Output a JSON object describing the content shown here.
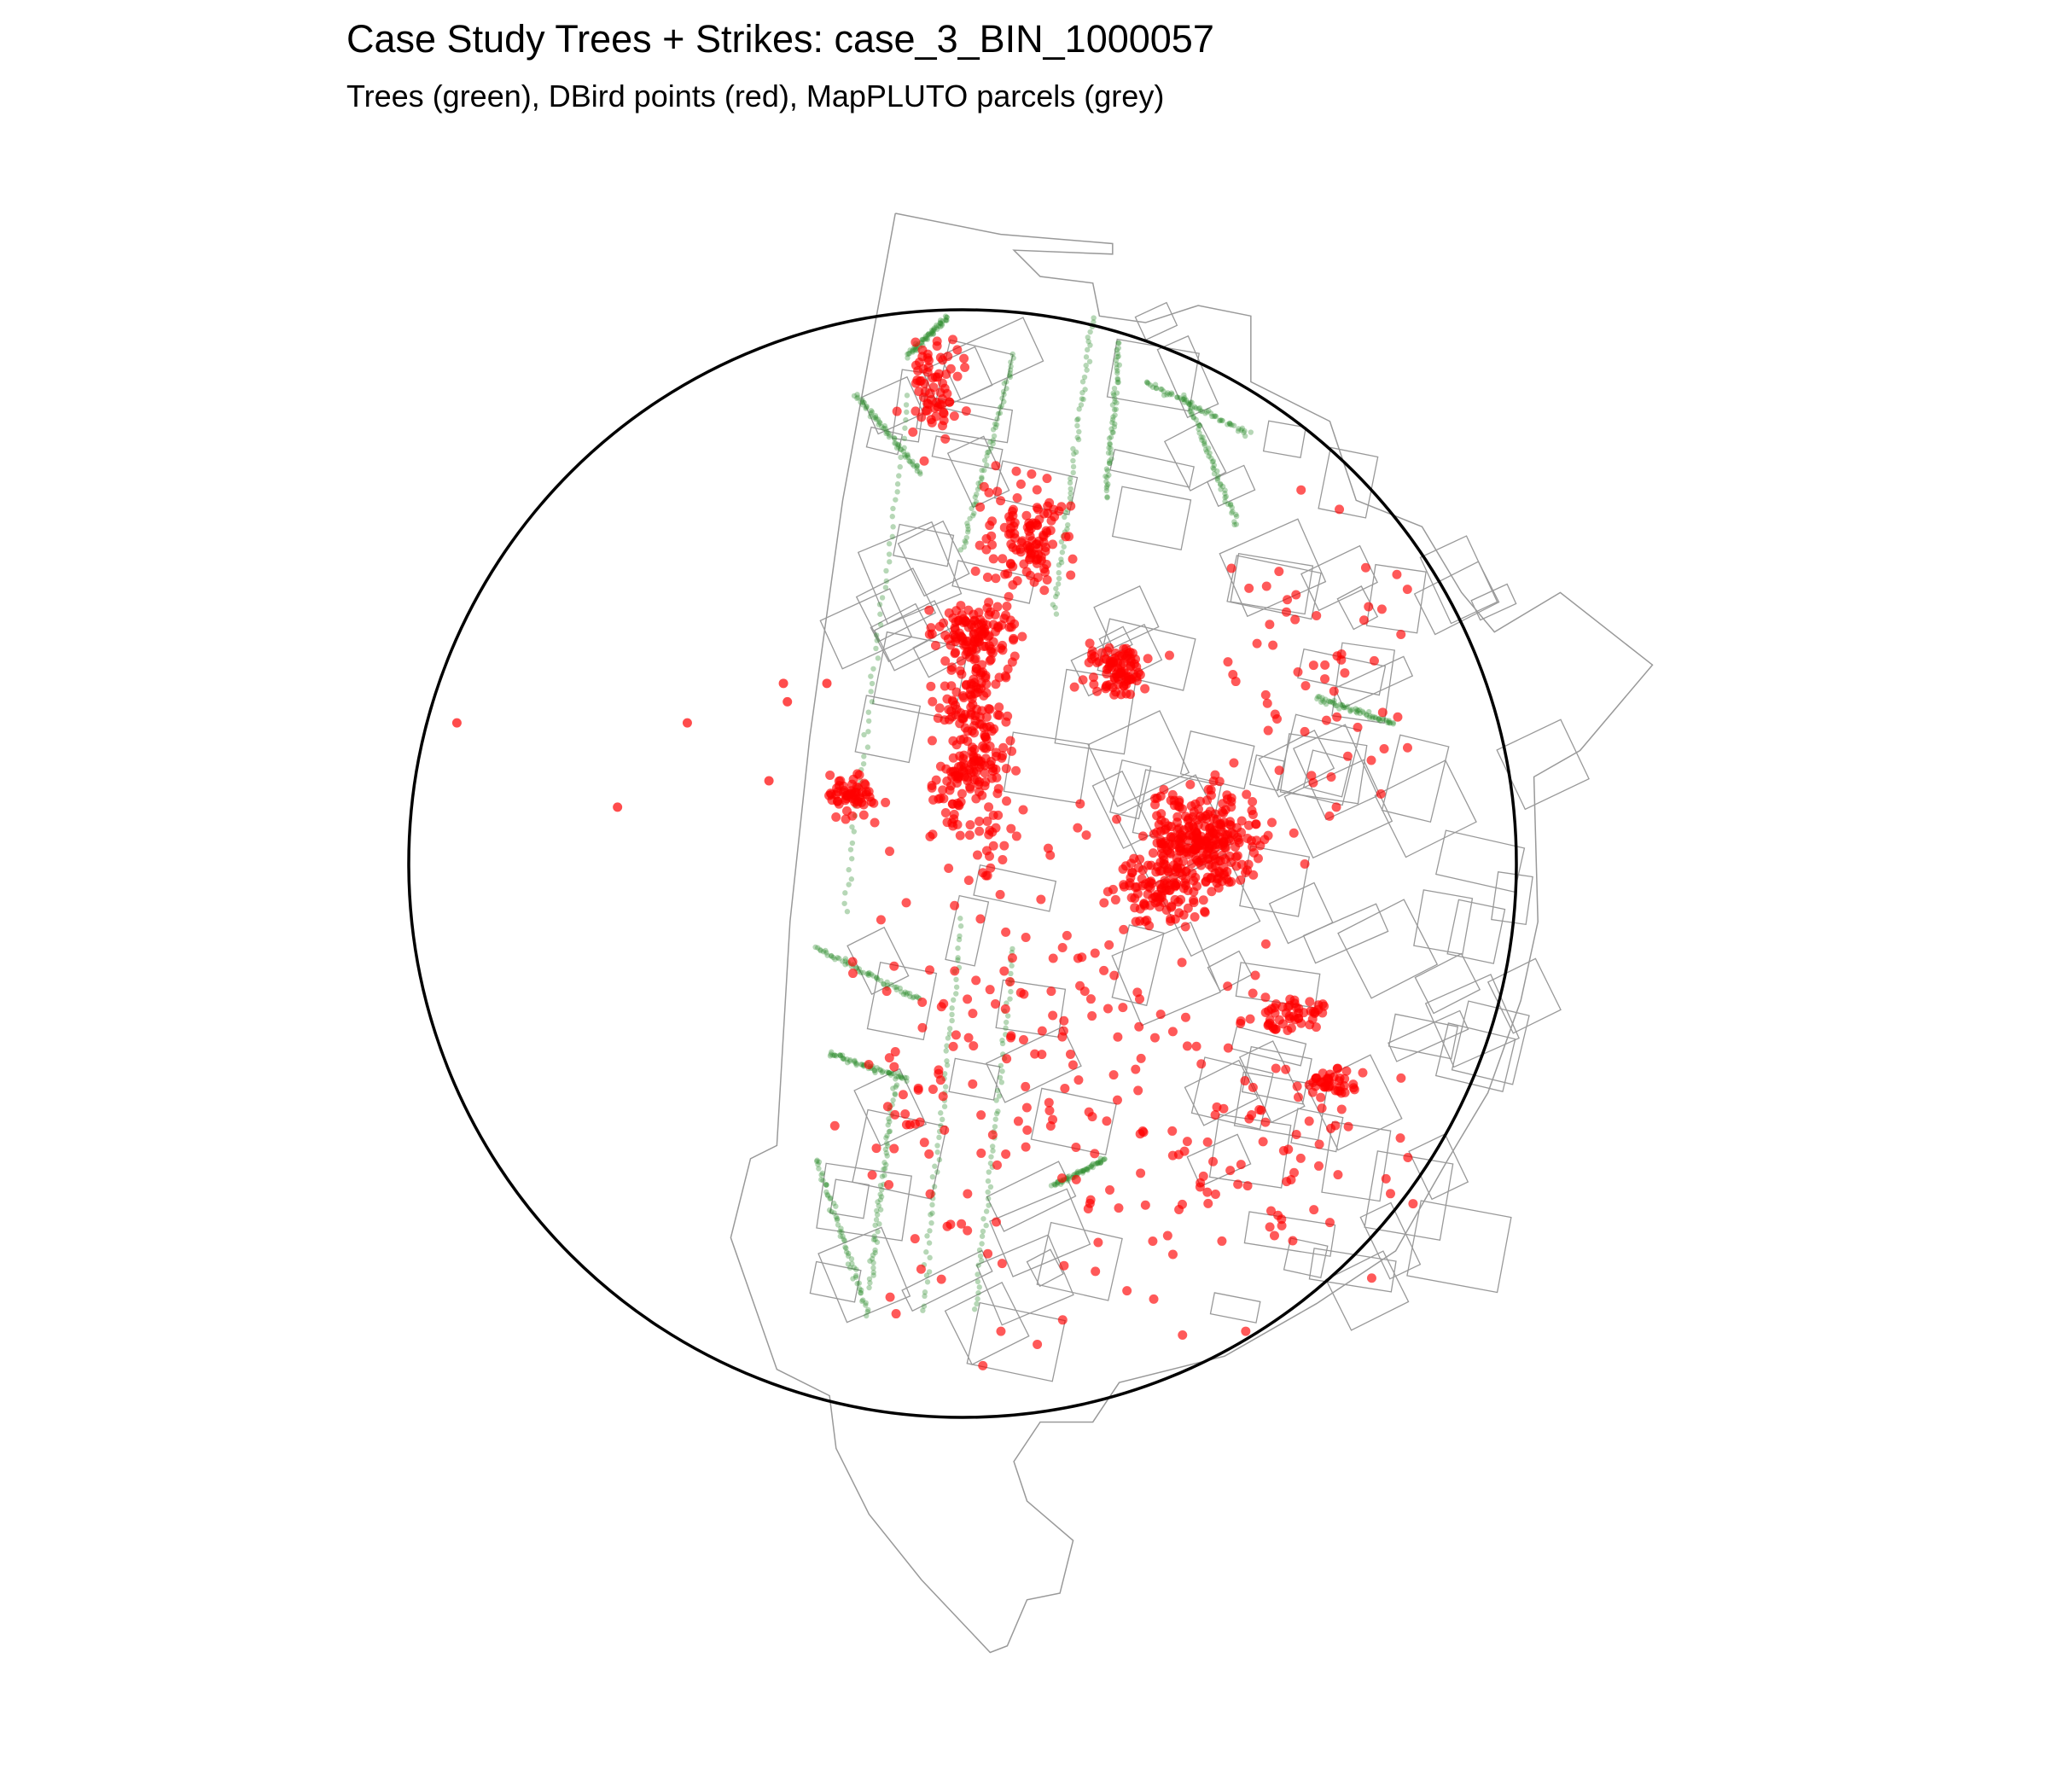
{
  "title": "Case Study Trees + Strikes: case_3_BIN_1000057",
  "subtitle": "Trees (green), DBird points (red), MapPLUTO parcels (grey)",
  "colors": {
    "trees": "#2e8b2e",
    "strikes": "#ff0000",
    "parcels": "#999999",
    "buffer": "#000000"
  },
  "chart_data": {
    "type": "map",
    "title": "Case Study Trees + Strikes: case_3_BIN_1000057",
    "layers": [
      {
        "label": "Trees",
        "color": "green",
        "kind": "points"
      },
      {
        "label": "DBird points",
        "color": "red",
        "kind": "points"
      },
      {
        "label": "MapPLUTO parcels",
        "color": "grey",
        "kind": "polygons"
      },
      {
        "label": "buffer",
        "color": "black",
        "kind": "circle"
      }
    ],
    "axes": "off"
  }
}
